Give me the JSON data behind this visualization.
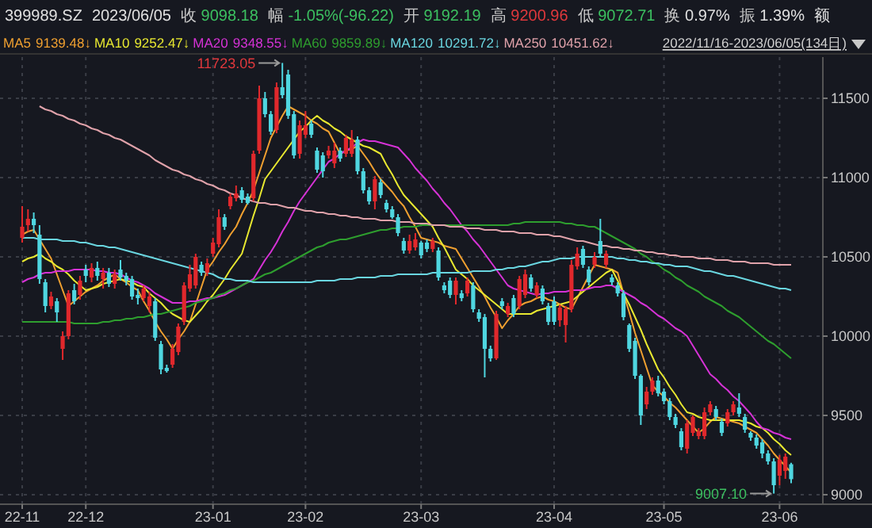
{
  "chart_data": {
    "type": "candlestick",
    "title": "399989.SZ",
    "categories": [
      "22-11",
      null,
      null,
      null,
      null,
      null,
      null,
      null,
      null,
      null,
      null,
      "22-12",
      null,
      null,
      null,
      null,
      null,
      null,
      null,
      null,
      null,
      null,
      null,
      null,
      null,
      null,
      null,
      null,
      null,
      null,
      null,
      null,
      null,
      "23-01",
      null,
      null,
      null,
      null,
      null,
      null,
      null,
      null,
      null,
      null,
      null,
      null,
      null,
      null,
      null,
      "23-02",
      null,
      null,
      null,
      null,
      null,
      null,
      null,
      null,
      null,
      null,
      null,
      null,
      null,
      null,
      null,
      null,
      null,
      null,
      null,
      "23-03",
      null,
      null,
      null,
      null,
      null,
      null,
      null,
      null,
      null,
      null,
      null,
      null,
      null,
      null,
      null,
      null,
      null,
      null,
      null,
      null,
      null,
      null,
      "23-04",
      null,
      null,
      null,
      null,
      null,
      null,
      null,
      null,
      null,
      null,
      null,
      null,
      null,
      null,
      null,
      null,
      null,
      null,
      "23-05",
      null,
      null,
      null,
      null,
      null,
      null,
      null,
      null,
      null,
      null,
      null,
      null,
      null,
      null,
      null,
      null,
      null,
      null,
      null,
      "23-06",
      null,
      null
    ],
    "ohlc": [
      [
        10620,
        10820,
        10590,
        10690
      ],
      [
        10700,
        10800,
        10660,
        10740
      ],
      [
        10740,
        10780,
        10650,
        10700
      ],
      [
        10640,
        10700,
        10330,
        10360
      ],
      [
        10340,
        10360,
        10150,
        10190
      ],
      [
        10190,
        10280,
        10170,
        10250
      ],
      [
        10220,
        10240,
        10090,
        10150
      ],
      [
        9920,
        10030,
        9850,
        10000
      ],
      [
        10000,
        10290,
        9980,
        10270
      ],
      [
        10290,
        10330,
        10200,
        10220
      ],
      [
        10260,
        10380,
        10230,
        10350
      ],
      [
        10420,
        10450,
        10340,
        10380
      ],
      [
        10370,
        10460,
        10340,
        10430
      ],
      [
        10430,
        10470,
        10350,
        10380
      ],
      [
        10360,
        10430,
        10300,
        10400
      ],
      [
        10400,
        10430,
        10310,
        10330
      ],
      [
        10330,
        10420,
        10300,
        10390
      ],
      [
        10420,
        10480,
        10350,
        10370
      ],
      [
        10380,
        10400,
        10320,
        10350
      ],
      [
        10360,
        10380,
        10230,
        10250
      ],
      [
        10260,
        10300,
        10200,
        10240
      ],
      [
        10240,
        10320,
        10220,
        10300
      ],
      [
        10190,
        10280,
        10150,
        10250
      ],
      [
        10220,
        10240,
        9970,
        9990
      ],
      [
        9950,
        9970,
        9760,
        9790
      ],
      [
        9800,
        9820,
        9770,
        9780
      ],
      [
        9820,
        9950,
        9800,
        9920
      ],
      [
        9900,
        10080,
        9880,
        10060
      ],
      [
        10090,
        10340,
        10070,
        10320
      ],
      [
        10300,
        10450,
        10280,
        10390
      ],
      [
        10320,
        10520,
        10300,
        10500
      ],
      [
        10450,
        10470,
        10380,
        10400
      ],
      [
        10400,
        10490,
        10380,
        10460
      ],
      [
        10520,
        10620,
        10500,
        10590
      ],
      [
        10580,
        10800,
        10560,
        10750
      ],
      [
        10750,
        10770,
        10670,
        10690
      ],
      [
        10820,
        10900,
        10800,
        10880
      ],
      [
        10870,
        10950,
        10850,
        10900
      ],
      [
        10920,
        10940,
        10840,
        10860
      ],
      [
        10880,
        10900,
        10830,
        10840
      ],
      [
        10870,
        11170,
        10850,
        11150
      ],
      [
        11170,
        11580,
        11150,
        11500
      ],
      [
        11500,
        11540,
        11380,
        11400
      ],
      [
        11400,
        11420,
        11270,
        11290
      ],
      [
        11300,
        11600,
        11280,
        11570
      ],
      [
        11570,
        11723.05,
        11500,
        11520
      ],
      [
        11650,
        11680,
        11370,
        11390
      ],
      [
        11400,
        11420,
        11120,
        11140
      ],
      [
        11150,
        11360,
        11120,
        11330
      ],
      [
        11270,
        11420,
        11250,
        11330
      ],
      [
        11340,
        11360,
        11250,
        11270
      ],
      [
        11170,
        11190,
        11030,
        11050
      ],
      [
        11140,
        11160,
        11000,
        11040
      ],
      [
        11140,
        11200,
        11120,
        11170
      ],
      [
        11090,
        11220,
        11060,
        11170
      ],
      [
        11170,
        11190,
        11100,
        11120
      ],
      [
        11150,
        11270,
        11130,
        11250
      ],
      [
        11150,
        11300,
        11130,
        11240
      ],
      [
        11240,
        11260,
        11020,
        11040
      ],
      [
        11040,
        11060,
        10900,
        10920
      ],
      [
        10920,
        10940,
        10830,
        10850
      ],
      [
        10850,
        11010,
        10800,
        10990
      ],
      [
        10970,
        10990,
        10870,
        10890
      ],
      [
        10840,
        10860,
        10780,
        10800
      ],
      [
        10800,
        10820,
        10740,
        10750
      ],
      [
        10750,
        10770,
        10630,
        10650
      ],
      [
        10600,
        10620,
        10520,
        10540
      ],
      [
        10540,
        10640,
        10520,
        10600
      ],
      [
        10560,
        10650,
        10540,
        10610
      ],
      [
        10590,
        10600,
        10490,
        10510
      ],
      [
        10590,
        10610,
        10530,
        10550
      ],
      [
        10550,
        10620,
        10530,
        10600
      ],
      [
        10540,
        10560,
        10350,
        10370
      ],
      [
        10320,
        10340,
        10270,
        10290
      ],
      [
        10350,
        10370,
        10240,
        10260
      ],
      [
        10260,
        10370,
        10200,
        10350
      ],
      [
        10270,
        10290,
        10220,
        10240
      ],
      [
        10270,
        10370,
        10250,
        10350
      ],
      [
        10320,
        10340,
        10150,
        10170
      ],
      [
        10150,
        10170,
        10090,
        10110
      ],
      [
        10120,
        10140,
        9740,
        9920
      ],
      [
        9920,
        9940,
        9840,
        9860
      ],
      [
        9860,
        10160,
        9850,
        10140
      ],
      [
        10220,
        10240,
        10170,
        10190
      ],
      [
        10140,
        10210,
        10120,
        10190
      ],
      [
        10240,
        10260,
        10120,
        10140
      ],
      [
        10190,
        10380,
        10170,
        10360
      ],
      [
        10260,
        10420,
        10240,
        10390
      ],
      [
        10370,
        10390,
        10280,
        10300
      ],
      [
        10260,
        10340,
        10240,
        10320
      ],
      [
        10300,
        10320,
        10200,
        10220
      ],
      [
        10190,
        10210,
        10070,
        10090
      ],
      [
        10220,
        10250,
        10070,
        10090
      ],
      [
        10100,
        10200,
        10060,
        10180
      ],
      [
        10070,
        10190,
        9960,
        10170
      ],
      [
        10170,
        10480,
        10150,
        10450
      ],
      [
        10440,
        10560,
        10420,
        10520
      ],
      [
        10550,
        10570,
        10430,
        10450
      ],
      [
        10420,
        10440,
        10320,
        10340
      ],
      [
        10450,
        10530,
        10430,
        10500
      ],
      [
        10600,
        10740,
        10500,
        10520
      ],
      [
        10450,
        10540,
        10430,
        10520
      ],
      [
        10370,
        10390,
        10320,
        10340
      ],
      [
        10320,
        10340,
        10250,
        10270
      ],
      [
        10270,
        10290,
        10100,
        10120
      ],
      [
        10070,
        10080,
        9900,
        9920
      ],
      [
        9970,
        9990,
        9730,
        9750
      ],
      [
        9750,
        9760,
        9440,
        9500
      ],
      [
        9570,
        9680,
        9540,
        9650
      ],
      [
        9650,
        9740,
        9630,
        9720
      ],
      [
        9720,
        9750,
        9620,
        9640
      ],
      [
        9650,
        9670,
        9570,
        9590
      ],
      [
        9590,
        9610,
        9470,
        9490
      ],
      [
        9490,
        9510,
        9420,
        9440
      ],
      [
        9400,
        9420,
        9280,
        9300
      ],
      [
        9290,
        9470,
        9260,
        9450
      ],
      [
        9390,
        9500,
        9370,
        9490
      ],
      [
        9370,
        9420,
        9350,
        9400
      ],
      [
        9370,
        9550,
        9350,
        9520
      ],
      [
        9520,
        9590,
        9500,
        9570
      ],
      [
        9540,
        9560,
        9470,
        9490
      ],
      [
        9460,
        9480,
        9370,
        9390
      ],
      [
        9450,
        9540,
        9430,
        9520
      ],
      [
        9520,
        9590,
        9500,
        9570
      ],
      [
        9550,
        9640,
        9490,
        9510
      ],
      [
        9490,
        9510,
        9390,
        9410
      ],
      [
        9390,
        9400,
        9340,
        9360
      ],
      [
        9360,
        9380,
        9290,
        9310
      ],
      [
        9330,
        9350,
        9230,
        9260
      ],
      [
        9260,
        9280,
        9190,
        9210
      ],
      [
        9210,
        9230,
        9007.1,
        9060
      ],
      [
        9120,
        9250,
        9060,
        9220
      ],
      [
        9150,
        9260,
        9100,
        9240
      ],
      [
        9192.19,
        9200.96,
        9072.71,
        9098.18
      ]
    ],
    "colors": [
      "#e0282c",
      "#e0282c",
      "#4fd6e0",
      "#4fd6e0",
      "#4fd6e0",
      "#e0282c",
      "#4fd6e0",
      "#e0282c",
      "#e0282c",
      "#4fd6e0",
      "#e0282c",
      "#4fd6e0",
      "#e0282c",
      "#4fd6e0",
      "#e0282c",
      "#4fd6e0",
      "#e0282c",
      "#4fd6e0",
      "#4fd6e0",
      "#4fd6e0",
      "#4fd6e0",
      "#e0282c",
      "#e0282c",
      "#4fd6e0",
      "#4fd6e0",
      "#4fd6e0",
      "#e0282c",
      "#e0282c",
      "#e0282c",
      "#e0282c",
      "#e0282c",
      "#4fd6e0",
      "#e0282c",
      "#e0282c",
      "#e0282c",
      "#4fd6e0",
      "#e0282c",
      "#e0282c",
      "#4fd6e0",
      "#4fd6e0",
      "#e0282c",
      "#e0282c",
      "#4fd6e0",
      "#4fd6e0",
      "#e0282c",
      "#4fd6e0",
      "#4fd6e0",
      "#4fd6e0",
      "#e0282c",
      "#e0282c",
      "#4fd6e0",
      "#4fd6e0",
      "#4fd6e0",
      "#e0282c",
      "#e0282c",
      "#4fd6e0",
      "#e0282c",
      "#e0282c",
      "#4fd6e0",
      "#4fd6e0",
      "#4fd6e0",
      "#e0282c",
      "#4fd6e0",
      "#4fd6e0",
      "#4fd6e0",
      "#4fd6e0",
      "#4fd6e0",
      "#e0282c",
      "#e0282c",
      "#4fd6e0",
      "#4fd6e0",
      "#e0282c",
      "#4fd6e0",
      "#4fd6e0",
      "#4fd6e0",
      "#e0282c",
      "#4fd6e0",
      "#e0282c",
      "#4fd6e0",
      "#4fd6e0",
      "#4fd6e0",
      "#4fd6e0",
      "#e0282c",
      "#4fd6e0",
      "#e0282c",
      "#4fd6e0",
      "#e0282c",
      "#e0282c",
      "#4fd6e0",
      "#e0282c",
      "#4fd6e0",
      "#4fd6e0",
      "#4fd6e0",
      "#e0282c",
      "#e0282c",
      "#e0282c",
      "#e0282c",
      "#4fd6e0",
      "#4fd6e0",
      "#e0282c",
      "#4fd6e0",
      "#e0282c",
      "#4fd6e0",
      "#4fd6e0",
      "#4fd6e0",
      "#4fd6e0",
      "#4fd6e0",
      "#4fd6e0",
      "#e0282c",
      "#e0282c",
      "#4fd6e0",
      "#4fd6e0",
      "#4fd6e0",
      "#4fd6e0",
      "#4fd6e0",
      "#e0282c",
      "#e0282c",
      "#e0282c",
      "#e0282c",
      "#e0282c",
      "#4fd6e0",
      "#4fd6e0",
      "#e0282c",
      "#e0282c",
      "#4fd6e0",
      "#4fd6e0",
      "#4fd6e0",
      "#4fd6e0",
      "#4fd6e0",
      "#4fd6e0",
      "#4fd6e0",
      "#e0282c",
      "#e0282c",
      "#4fd6e0"
    ],
    "series": [
      {
        "type": "line",
        "name": "MA5",
        "color": "#f0a030",
        "values": [
          10640,
          10660,
          10670,
          10610,
          10550,
          10490,
          10390,
          10290,
          10190,
          10220,
          10250,
          10280,
          10300,
          10320,
          10350,
          10370,
          10390,
          10360,
          10340,
          10310,
          10290,
          10220,
          10160,
          10090,
          10030,
          9980,
          9920,
          9980,
          10030,
          10090,
          10200,
          10310,
          10420,
          10470,
          10530,
          10580,
          10640,
          10690,
          10770,
          10840,
          10920,
          11030,
          11140,
          11250,
          11320,
          11390,
          11450,
          11430,
          11410,
          11390,
          11360,
          11340,
          11310,
          11290,
          11220,
          11150,
          11170,
          11180,
          11200,
          11150,
          11100,
          11040,
          10990,
          10950,
          10910,
          10860,
          10820,
          10750,
          10690,
          10620,
          10610,
          10600,
          10590,
          10570,
          10560,
          10550,
          10490,
          10430,
          10370,
          10310,
          10250,
          10180,
          10120,
          10050,
          10100,
          10140,
          10190,
          10210,
          10220,
          10240,
          10250,
          10230,
          10220,
          10200,
          10180,
          10170,
          10240,
          10310,
          10380,
          10450,
          10440,
          10430,
          10420,
          10400,
          10270,
          10150,
          10020,
          9910,
          9800,
          9690,
          9650,
          9620,
          9580,
          9550,
          9510,
          9470,
          9430,
          9390,
          9420,
          9460,
          9490,
          9480,
          9470,
          9460,
          9450,
          9430,
          9410,
          9390,
          9350,
          9310,
          9260,
          9220,
          9180,
          9140
        ]
      },
      {
        "type": "line",
        "name": "MA10",
        "color": "#e8e830",
        "values": [
          10470,
          10490,
          10500,
          10520,
          10490,
          10470,
          10440,
          10420,
          10390,
          10350,
          10320,
          10290,
          10300,
          10310,
          10330,
          10340,
          10350,
          10360,
          10350,
          10340,
          10320,
          10310,
          10270,
          10240,
          10210,
          10170,
          10140,
          10120,
          10100,
          10090,
          10130,
          10170,
          10220,
          10260,
          10310,
          10360,
          10420,
          10470,
          10520,
          10640,
          10760,
          10870,
          10990,
          11040,
          11090,
          11140,
          11190,
          11240,
          11290,
          11320,
          11360,
          11390,
          11360,
          11340,
          11310,
          11290,
          11260,
          11240,
          11220,
          11200,
          11190,
          11170,
          11150,
          11080,
          11020,
          10950,
          10890,
          10850,
          10810,
          10770,
          10730,
          10690,
          10620,
          10560,
          10490,
          10420,
          10390,
          10360,
          10320,
          10290,
          10260,
          10230,
          10200,
          10170,
          10140,
          10140,
          10140,
          10140,
          10140,
          10160,
          10170,
          10180,
          10190,
          10200,
          10210,
          10220,
          10250,
          10280,
          10310,
          10340,
          10370,
          10400,
          10420,
          10350,
          10270,
          10200,
          10120,
          10040,
          9950,
          9870,
          9790,
          9740,
          9680,
          9630,
          9570,
          9520,
          9510,
          9490,
          9480,
          9470,
          9470,
          9470,
          9470,
          9470,
          9470,
          9460,
          9450,
          9430,
          9420,
          9390,
          9350,
          9320,
          9280,
          9250
        ]
      },
      {
        "type": "line",
        "name": "MA20",
        "color": "#d632d6",
        "values": [
          10340,
          10360,
          10370,
          10390,
          10400,
          10400,
          10410,
          10410,
          10410,
          10420,
          10420,
          10420,
          10420,
          10410,
          10410,
          10400,
          10400,
          10390,
          10370,
          10350,
          10340,
          10320,
          10300,
          10270,
          10250,
          10230,
          10210,
          10210,
          10210,
          10220,
          10220,
          10230,
          10240,
          10240,
          10250,
          10260,
          10280,
          10300,
          10320,
          10340,
          10360,
          10420,
          10480,
          10530,
          10590,
          10660,
          10720,
          10790,
          10850,
          10900,
          10950,
          11000,
          11050,
          11100,
          11120,
          11150,
          11170,
          11190,
          11220,
          11240,
          11230,
          11230,
          11220,
          11210,
          11200,
          11190,
          11150,
          11110,
          11060,
          11020,
          10980,
          10930,
          10890,
          10840,
          10800,
          10750,
          10700,
          10660,
          10610,
          10570,
          10520,
          10470,
          10420,
          10370,
          10320,
          10300,
          10290,
          10280,
          10270,
          10260,
          10270,
          10270,
          10280,
          10280,
          10280,
          10290,
          10290,
          10290,
          10300,
          10310,
          10310,
          10320,
          10320,
          10300,
          10280,
          10260,
          10240,
          10210,
          10190,
          10160,
          10130,
          10110,
          10080,
          10050,
          10030,
          10000,
          9940,
          9880,
          9820,
          9760,
          9730,
          9690,
          9660,
          9620,
          9590,
          9550,
          9510,
          9460,
          9420,
          9410,
          9390,
          9380,
          9360,
          9350
        ]
      },
      {
        "type": "line",
        "name": "MA60",
        "color": "#2e9e2e",
        "values": [
          10090,
          10090,
          10090,
          10090,
          10090,
          10090,
          10090,
          10090,
          10090,
          10080,
          10080,
          10080,
          10080,
          10080,
          10090,
          10090,
          10100,
          10100,
          10110,
          10110,
          10120,
          10120,
          10130,
          10140,
          10140,
          10150,
          10160,
          10170,
          10180,
          10190,
          10210,
          10220,
          10230,
          10240,
          10260,
          10270,
          10290,
          10300,
          10320,
          10340,
          10350,
          10370,
          10390,
          10400,
          10420,
          10440,
          10460,
          10480,
          10500,
          10520,
          10540,
          10560,
          10570,
          10590,
          10600,
          10610,
          10610,
          10620,
          10630,
          10640,
          10650,
          10660,
          10670,
          10670,
          10680,
          10680,
          10690,
          10690,
          10690,
          10700,
          10700,
          10700,
          10700,
          10700,
          10700,
          10700,
          10700,
          10700,
          10700,
          10700,
          10700,
          10700,
          10700,
          10700,
          10700,
          10710,
          10710,
          10720,
          10720,
          10720,
          10720,
          10720,
          10720,
          10720,
          10710,
          10710,
          10700,
          10700,
          10690,
          10690,
          10670,
          10650,
          10630,
          10610,
          10590,
          10570,
          10550,
          10520,
          10500,
          10470,
          10450,
          10420,
          10400,
          10370,
          10350,
          10320,
          10300,
          10280,
          10250,
          10230,
          10210,
          10190,
          10160,
          10140,
          10120,
          10090,
          10060,
          10030,
          10000,
          9970,
          9950,
          9920,
          9890,
          9860
        ]
      },
      {
        "type": "line",
        "name": "MA120",
        "color": "#6ad6e0",
        "values": [
          10620,
          10620,
          10620,
          10610,
          10610,
          10610,
          10610,
          10600,
          10600,
          10600,
          10590,
          10590,
          10580,
          10570,
          10570,
          10560,
          10560,
          10550,
          10540,
          10530,
          10520,
          10510,
          10500,
          10490,
          10480,
          10470,
          10460,
          10450,
          10440,
          10430,
          10420,
          10410,
          10400,
          10390,
          10370,
          10360,
          10360,
          10350,
          10350,
          10350,
          10340,
          10340,
          10340,
          10340,
          10340,
          10340,
          10340,
          10340,
          10340,
          10340,
          10340,
          10350,
          10350,
          10350,
          10350,
          10360,
          10360,
          10360,
          10370,
          10370,
          10370,
          10370,
          10380,
          10380,
          10380,
          10390,
          10390,
          10390,
          10390,
          10390,
          10390,
          10400,
          10400,
          10400,
          10400,
          10400,
          10400,
          10400,
          10410,
          10410,
          10410,
          10410,
          10420,
          10420,
          10430,
          10430,
          10440,
          10440,
          10450,
          10460,
          10470,
          10470,
          10480,
          10490,
          10490,
          10490,
          10500,
          10500,
          10500,
          10500,
          10500,
          10500,
          10500,
          10490,
          10490,
          10480,
          10480,
          10470,
          10470,
          10460,
          10460,
          10450,
          10450,
          10440,
          10440,
          10440,
          10430,
          10420,
          10410,
          10410,
          10400,
          10390,
          10380,
          10380,
          10370,
          10360,
          10350,
          10340,
          10330,
          10320,
          10310,
          10300,
          10300,
          10290
        ]
      },
      {
        "type": "line",
        "name": "MA250",
        "color": "#e0a2aa",
        "values": [
          null,
          null,
          null,
          11450,
          11430,
          11420,
          11400,
          11390,
          11370,
          11360,
          11340,
          11330,
          11310,
          11300,
          11280,
          11270,
          11250,
          11240,
          11220,
          11200,
          11180,
          11160,
          11140,
          11110,
          11090,
          11070,
          11050,
          11040,
          11020,
          11010,
          10990,
          10980,
          10960,
          10950,
          10930,
          10920,
          10900,
          10890,
          10870,
          10860,
          10850,
          10840,
          10840,
          10830,
          10830,
          10820,
          10810,
          10810,
          10800,
          10790,
          10790,
          10780,
          10780,
          10770,
          10770,
          10760,
          10760,
          10750,
          10750,
          10740,
          10740,
          10740,
          10730,
          10730,
          10730,
          10720,
          10720,
          10720,
          10710,
          10710,
          10710,
          10700,
          10700,
          10700,
          10690,
          10690,
          10690,
          10680,
          10680,
          10680,
          10670,
          10670,
          10670,
          10660,
          10660,
          10660,
          10650,
          10650,
          10650,
          10640,
          10640,
          10640,
          10630,
          10630,
          10620,
          10610,
          10600,
          10600,
          10590,
          10580,
          10570,
          10570,
          10560,
          10560,
          10550,
          10550,
          10540,
          10540,
          10530,
          10530,
          10520,
          10520,
          10510,
          10510,
          10500,
          10500,
          10500,
          10490,
          10490,
          10490,
          10480,
          10480,
          10480,
          10470,
          10470,
          10470,
          10460,
          10460,
          10460,
          10460,
          10450,
          10450,
          10450,
          10450
        ]
      }
    ],
    "ylim": [
      8940,
      11760
    ],
    "yticks": [
      9000,
      9500,
      10000,
      10500,
      11000,
      11500
    ],
    "grid": true,
    "legend": "top",
    "annotations": [
      "9139.48↓",
      "9252.47↓",
      "9348.55↓",
      "9859.89↓",
      "10291.72↓",
      "10451.62↓",
      "2023/06/05",
      "收 9098.18",
      "幅 -1.05%(-96.22)",
      "开 9192.19",
      "高 9200.96",
      "低 9072.71",
      "换 0.97%",
      "振 1.39%",
      "额",
      "2022/11/16-2023/06/05(134日)",
      "11723.05",
      "9007.10"
    ]
  }
}
